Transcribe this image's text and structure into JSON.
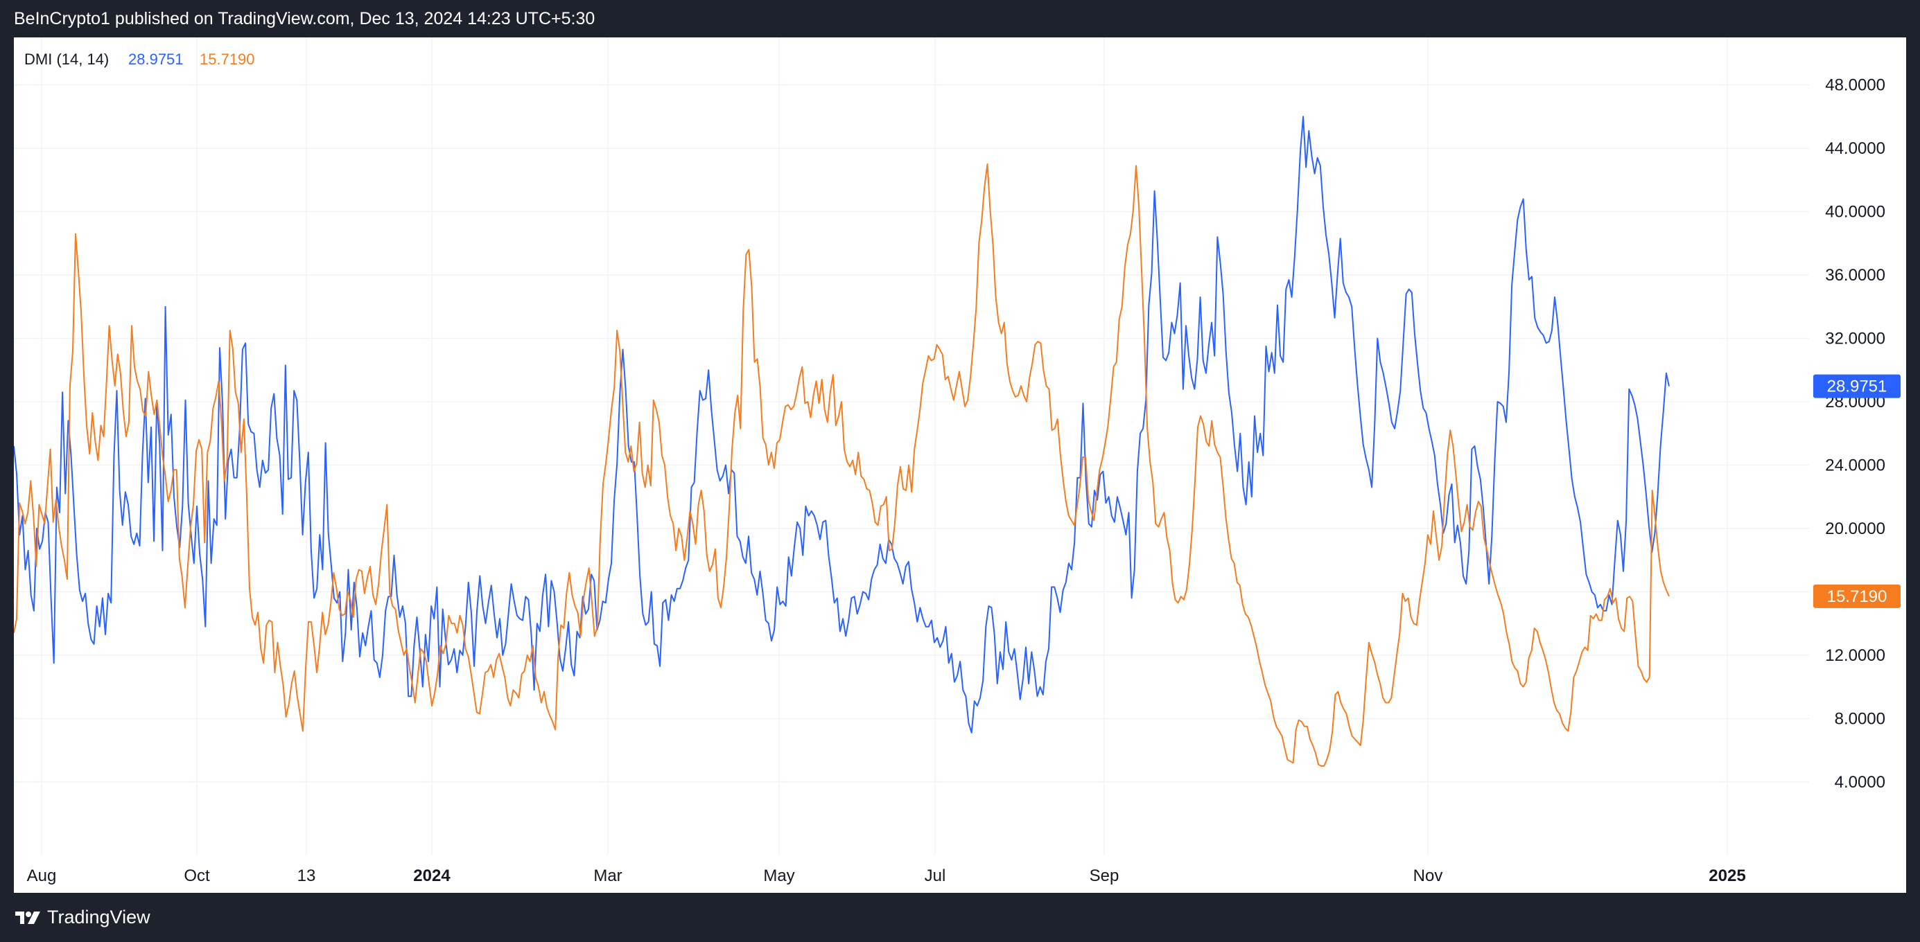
{
  "header": {
    "publisher": "BeInCrypto1 published on TradingView.com, Dec 13, 2024 14:23 UTC+5:30"
  },
  "footer": {
    "brand": "TradingView"
  },
  "indicator": {
    "name": "DMI (14, 14)",
    "plus_di": "28.9751",
    "minus_di": "15.7190"
  },
  "chart_data": {
    "type": "line",
    "title": "DMI (14, 14)",
    "y_ticks": [
      "4.0000",
      "8.0000",
      "12.0000",
      "16.0000",
      "20.0000",
      "24.0000",
      "28.0000",
      "32.0000",
      "36.0000",
      "40.0000",
      "44.0000",
      "48.0000"
    ],
    "y_range": [
      -0.6,
      51.0
    ],
    "x_ticks": [
      "Aug",
      "Oct",
      "13",
      "2024",
      "Mar",
      "May",
      "Jul",
      "Sep",
      "Nov",
      "2025"
    ],
    "grid": true,
    "series": [
      {
        "name": "",
        "color": "#2962ff",
        "last_value": "28.9751",
        "values": [
          25.2,
          23.4,
          19.6,
          20.8,
          17.4,
          18.6,
          15.8,
          14.8,
          20.0,
          18.7,
          19.2,
          21.0,
          20.4,
          15.6,
          11.5,
          22.6,
          21.0,
          28.6,
          22.2,
          26.8,
          24.6,
          21.4,
          18.3,
          16.1,
          15.4,
          15.9,
          14.0,
          13.0,
          12.7,
          15.1,
          13.8,
          15.6,
          13.3,
          15.9,
          15.3,
          24.5,
          28.7,
          22.4,
          20.2,
          22.3,
          21.5,
          19.5,
          19.0,
          19.7,
          18.9,
          24.7,
          28.2,
          22.9,
          26.4,
          19.2,
          28.0,
          25.3,
          18.6,
          34.0,
          25.9,
          27.2,
          22.0,
          20.1,
          18.8,
          21.4,
          28.1,
          21.6,
          19.6,
          17.8,
          21.4,
          18.4,
          16.8,
          13.8,
          23.0,
          17.8,
          20.6,
          20.2,
          31.4,
          27.8,
          20.6,
          24.3,
          25.0,
          23.2,
          23.2,
          26.3,
          31.3,
          31.7,
          26.6,
          26.1,
          26.0,
          23.7,
          22.6,
          24.3,
          23.5,
          23.7,
          27.6,
          28.5,
          25.7,
          24.6,
          20.9,
          30.3,
          23.1,
          23.2,
          28.7,
          28.1,
          24.3,
          19.6,
          22.9,
          24.8,
          18.6,
          15.6,
          16.2,
          19.6,
          17.4,
          25.4,
          19.7,
          17.7,
          15.6,
          15.3,
          16.0,
          11.6,
          13.4,
          17.4,
          13.6,
          16.6,
          15.0,
          11.9,
          13.4,
          12.6,
          13.8,
          14.8,
          11.7,
          11.5,
          10.6,
          12.0,
          14.8,
          15.7,
          15.7,
          18.3,
          15.8,
          14.4,
          15.1,
          14.0,
          9.4,
          9.4,
          12.6,
          14.4,
          12.3,
          10.0,
          13.3,
          11.6,
          15.1,
          14.3,
          16.3,
          10.0,
          14.9,
          13.0,
          11.4,
          11.7,
          12.4,
          10.9,
          12.3,
          12.0,
          13.8,
          16.6,
          14.7,
          11.3,
          14.8,
          17.0,
          15.1,
          14.0,
          15.3,
          16.4,
          14.6,
          13.1,
          14.3,
          12.0,
          12.7,
          14.6,
          16.5,
          15.4,
          14.5,
          14.3,
          14.2,
          15.7,
          15.5,
          13.3,
          9.8,
          14.0,
          13.5,
          15.8,
          17.1,
          13.8,
          16.7,
          16.0,
          14.1,
          11.8,
          11.0,
          12.4,
          14.1,
          11.4,
          10.7,
          13.5,
          13.1,
          15.7,
          14.6,
          14.9,
          17.1,
          16.7,
          13.6,
          14.2,
          15.4,
          15.3,
          16.8,
          17.8,
          21.8,
          24.1,
          28.6,
          31.3,
          28.8,
          25.2,
          24.2,
          24.2,
          20.8,
          17.0,
          14.6,
          13.9,
          14.1,
          16.0,
          12.7,
          12.6,
          11.3,
          15.3,
          15.5,
          14.2,
          15.8,
          15.4,
          16.2,
          16.2,
          16.7,
          17.5,
          18.0,
          22.6,
          22.9,
          26.1,
          28.7,
          28.1,
          28.2,
          30.0,
          27.5,
          25.6,
          23.7,
          23.0,
          23.3,
          24.0,
          22.2,
          23.7,
          23.5,
          19.5,
          19.2,
          18.2,
          17.8,
          19.5,
          17.2,
          16.8,
          15.8,
          17.3,
          15.9,
          14.2,
          14.0,
          12.9,
          13.6,
          16.3,
          15.2,
          15.4,
          15.1,
          18.2,
          17.0,
          18.8,
          20.4,
          20.0,
          18.3,
          21.4,
          20.8,
          21.1,
          20.8,
          20.2,
          19.3,
          20.4,
          20.5,
          18.3,
          16.9,
          15.3,
          15.6,
          13.5,
          14.3,
          13.2,
          14.2,
          15.6,
          15.7,
          14.6,
          15.2,
          16.0,
          15.9,
          15.5,
          16.8,
          17.4,
          17.7,
          19.0,
          18.1,
          17.8,
          19.3,
          19.0,
          18.1,
          17.8,
          17.2,
          16.5,
          17.6,
          17.9,
          16.2,
          15.3,
          14.1,
          15.0,
          14.3,
          13.8,
          13.8,
          14.2,
          12.8,
          13.1,
          12.5,
          12.9,
          13.8,
          11.5,
          12.1,
          10.3,
          10.7,
          11.6,
          9.8,
          9.4,
          7.7,
          7.1,
          9.1,
          8.8,
          9.3,
          10.4,
          13.8,
          15.1,
          15.0,
          13.3,
          10.2,
          12.2,
          11.1,
          14.1,
          12.2,
          11.7,
          12.4,
          10.9,
          9.2,
          10.5,
          12.5,
          10.2,
          12.2,
          11.0,
          9.4,
          10.0,
          9.5,
          11.6,
          12.4,
          16.3,
          16.3,
          15.6,
          14.7,
          16.1,
          16.6,
          17.8,
          17.4,
          19.1,
          23.2,
          23.2,
          27.9,
          23.1,
          20.3,
          20.1,
          22.4,
          21.8,
          23.4,
          23.6,
          21.6,
          22.0,
          20.8,
          20.4,
          22.0,
          21.3,
          20.5,
          19.6,
          21.0,
          15.6,
          17.4,
          23.6,
          26.0,
          26.3,
          28.1,
          34.1,
          36.1,
          41.3,
          38.2,
          34.4,
          30.8,
          30.6,
          31.1,
          33.0,
          32.3,
          33.5,
          35.5,
          28.8,
          32.8,
          30.9,
          29.5,
          28.8,
          30.7,
          34.6,
          30.6,
          29.8,
          31.6,
          33.0,
          30.9,
          38.4,
          36.8,
          34.8,
          31.2,
          28.6,
          27.3,
          25.2,
          23.6,
          26.0,
          22.6,
          21.5,
          24.2,
          22.0,
          27.1,
          24.8,
          26.0,
          24.6,
          31.5,
          29.9,
          31.1,
          29.8,
          34.1,
          30.9,
          30.5,
          35.1,
          35.7,
          34.6,
          37.1,
          40.1,
          43.8,
          46.0,
          42.8,
          45.1,
          43.5,
          42.4,
          43.4,
          42.9,
          40.3,
          38.5,
          37.3,
          35.5,
          33.3,
          36.0,
          38.3,
          35.5,
          34.9,
          34.6,
          34.0,
          31.4,
          29.1,
          27.1,
          25.3,
          24.4,
          23.7,
          22.6,
          26.5,
          32.0,
          30.5,
          29.8,
          28.9,
          27.9,
          26.7,
          26.3,
          27.4,
          28.7,
          31.7,
          34.8,
          35.1,
          34.9,
          32.3,
          30.4,
          28.7,
          27.6,
          27.3,
          26.3,
          25.5,
          24.6,
          22.8,
          21.5,
          19.7,
          20.3,
          22.1,
          22.8,
          19.1,
          20.2,
          19.1,
          17.0,
          16.5,
          18.6,
          25.0,
          25.2,
          23.9,
          23.1,
          21.3,
          19.0,
          16.5,
          19.5,
          24.2,
          28.0,
          27.9,
          27.7,
          26.7,
          29.8,
          35.4,
          37.5,
          39.5,
          40.3,
          40.8,
          37.6,
          35.7,
          35.9,
          33.3,
          32.7,
          32.4,
          32.2,
          31.7,
          31.8,
          32.5,
          34.6,
          33.0,
          30.9,
          28.9,
          26.8,
          25.0,
          23.1,
          22.0,
          21.3,
          20.4,
          18.7,
          17.1,
          16.6,
          16.0,
          15.8,
          15.0,
          15.2,
          14.8,
          14.8,
          15.8,
          15.2,
          17.9,
          20.5,
          19.6,
          17.3,
          20.5,
          28.8,
          28.4,
          27.8,
          26.9,
          25.4,
          23.9,
          22.1,
          20.1,
          18.5,
          19.7,
          22.1,
          25.2,
          27.4,
          29.8,
          28.9751
        ]
      },
      {
        "name": "",
        "color": "#f57c1f",
        "last_value": "15.7190",
        "values": [
          13.4,
          14.3,
          21.6,
          21.1,
          20.3,
          21.0,
          23.0,
          20.8,
          17.6,
          21.5,
          20.9,
          20.3,
          22.7,
          25.0,
          20.4,
          21.8,
          20.1,
          18.9,
          18.0,
          16.8,
          29.0,
          31.2,
          38.6,
          36.2,
          33.6,
          29.5,
          26.4,
          24.7,
          27.3,
          25.5,
          24.3,
          26.5,
          25.8,
          29.2,
          32.8,
          30.6,
          29.0,
          31.0,
          29.8,
          27.4,
          25.8,
          26.7,
          32.8,
          30.2,
          29.3,
          28.8,
          27.4,
          27.1,
          29.9,
          28.4,
          27.2,
          28.1,
          26.4,
          24.6,
          23.3,
          21.7,
          22.4,
          23.7,
          23.7,
          18.1,
          16.9,
          15.0,
          17.6,
          20.1,
          21.5,
          24.9,
          25.6,
          25.0,
          19.1,
          24.8,
          25.5,
          27.6,
          28.3,
          29.3,
          26.8,
          23.0,
          24.2,
          32.5,
          31.4,
          28.6,
          27.9,
          24.8,
          26.9,
          22.1,
          16.2,
          14.4,
          13.9,
          14.7,
          12.4,
          11.5,
          13.9,
          14.2,
          14.1,
          10.9,
          12.8,
          11.3,
          10.1,
          8.1,
          8.9,
          10.2,
          11.0,
          9.4,
          8.3,
          7.2,
          11.1,
          14.1,
          14.1,
          12.6,
          10.9,
          12.6,
          14.7,
          13.3,
          13.9,
          15.3,
          17.2,
          16.2,
          14.9,
          14.5,
          14.6,
          16.0,
          15.5,
          14.4,
          16.8,
          17.4,
          17.3,
          15.9,
          16.9,
          17.6,
          15.8,
          15.2,
          16.5,
          18.5,
          20.0,
          21.5,
          15.9,
          15.1,
          14.9,
          13.6,
          12.8,
          12.0,
          12.4,
          11.2,
          10.2,
          9.0,
          10.7,
          12.4,
          12.2,
          11.6,
          10.2,
          8.8,
          9.6,
          10.8,
          12.6,
          12.1,
          12.7,
          14.5,
          14.0,
          14.0,
          13.4,
          14.5,
          13.9,
          12.4,
          11.9,
          10.8,
          9.6,
          8.4,
          8.3,
          9.5,
          10.9,
          11.0,
          11.4,
          10.6,
          11.7,
          12.1,
          11.3,
          10.6,
          9.3,
          8.8,
          9.8,
          9.6,
          9.3,
          10.8,
          11.0,
          12.0,
          11.6,
          12.6,
          10.6,
          10.0,
          9.0,
          9.7,
          8.7,
          8.2,
          7.8,
          7.3,
          11.9,
          13.9,
          13.7,
          15.9,
          17.2,
          15.8,
          15.1,
          14.7,
          13.2,
          15.5,
          16.6,
          17.5,
          15.4,
          13.2,
          13.8,
          19.3,
          22.8,
          24.1,
          25.7,
          27.5,
          28.9,
          32.5,
          31.2,
          28.0,
          24.8,
          24.2,
          25.2,
          23.6,
          24.1,
          26.7,
          23.5,
          22.6,
          24.0,
          22.7,
          28.1,
          27.5,
          26.7,
          24.6,
          24.0,
          22.0,
          20.8,
          20.3,
          18.6,
          20.0,
          19.5,
          18.0,
          19.4,
          21.1,
          20.3,
          19.0,
          21.5,
          22.4,
          21.1,
          18.3,
          17.3,
          17.7,
          18.7,
          15.6,
          15.0,
          16.3,
          18.2,
          21.3,
          25.0,
          27.3,
          28.4,
          26.3,
          33.8,
          37.3,
          37.6,
          35.2,
          30.5,
          30.7,
          28.9,
          25.7,
          25.3,
          24.0,
          24.8,
          23.8,
          25.4,
          25.6,
          26.7,
          27.7,
          27.8,
          27.5,
          27.7,
          28.5,
          29.5,
          30.2,
          27.9,
          28.0,
          27.0,
          28.4,
          29.3,
          27.9,
          29.4,
          27.5,
          26.7,
          28.6,
          29.7,
          26.5,
          27.1,
          28.0,
          25.0,
          24.2,
          23.9,
          24.3,
          23.4,
          24.8,
          23.3,
          23.1,
          22.5,
          22.4,
          21.6,
          20.4,
          20.2,
          21.4,
          21.5,
          22.0,
          18.6,
          18.7,
          20.3,
          22.7,
          23.9,
          22.5,
          22.4,
          24.0,
          22.3,
          25.0,
          26.2,
          27.5,
          29.2,
          30.0,
          30.9,
          30.6,
          30.7,
          31.6,
          31.3,
          31.0,
          29.4,
          29.6,
          28.8,
          28.1,
          29.0,
          29.9,
          28.8,
          27.7,
          28.1,
          29.6,
          31.6,
          33.9,
          38.0,
          39.5,
          41.6,
          43.0,
          40.1,
          37.9,
          34.6,
          33.0,
          32.3,
          33.0,
          30.4,
          29.3,
          28.7,
          28.3,
          28.4,
          29.0,
          28.4,
          28.0,
          29.5,
          30.4,
          31.6,
          31.8,
          31.7,
          30.0,
          29.0,
          28.8,
          26.2,
          26.3,
          26.9,
          24.7,
          23.1,
          21.7,
          20.8,
          20.5,
          20.2,
          21.4,
          22.7,
          24.5,
          24.5,
          21.8,
          21.1,
          20.5,
          22.2,
          23.7,
          24.4,
          25.4,
          26.5,
          28.3,
          30.2,
          30.5,
          33.2,
          34.0,
          36.5,
          37.9,
          38.6,
          40.1,
          42.9,
          40.4,
          36.2,
          31.9,
          26.3,
          24.2,
          22.9,
          20.3,
          20.1,
          20.6,
          21.0,
          19.4,
          18.6,
          16.5,
          15.5,
          15.3,
          15.7,
          15.5,
          16.1,
          17.7,
          19.9,
          23.0,
          26.4,
          27.1,
          26.6,
          25.5,
          25.2,
          26.8,
          25.3,
          24.8,
          24.5,
          22.7,
          20.7,
          19.3,
          18.1,
          17.8,
          16.6,
          16.4,
          15.2,
          14.6,
          14.4,
          13.9,
          13.2,
          12.5,
          11.6,
          10.9,
          10.1,
          9.6,
          9.1,
          8.1,
          7.5,
          7.2,
          6.9,
          6.1,
          5.4,
          5.3,
          5.2,
          7.3,
          7.9,
          7.8,
          7.5,
          7.5,
          6.7,
          6.3,
          5.8,
          5.1,
          5.0,
          5.0,
          5.4,
          6.0,
          7.2,
          9.5,
          9.7,
          9.0,
          8.6,
          8.3,
          7.5,
          6.9,
          6.7,
          6.5,
          6.3,
          7.9,
          10.5,
          12.8,
          12.1,
          11.6,
          10.8,
          10.2,
          9.3,
          9.0,
          9.0,
          9.3,
          10.7,
          12.1,
          13.4,
          15.9,
          15.4,
          15.6,
          14.4,
          14.0,
          13.9,
          15.4,
          16.6,
          17.8,
          19.6,
          19.0,
          21.1,
          19.5,
          18.0,
          18.9,
          22.0,
          24.7,
          26.2,
          25.2,
          23.4,
          21.5,
          19.8,
          20.4,
          21.5,
          20.1,
          19.9,
          21.0,
          21.7,
          21.4,
          19.4,
          18.7,
          17.8,
          17.1,
          16.4,
          15.8,
          15.3,
          14.6,
          13.5,
          12.7,
          11.6,
          11.2,
          11.0,
          10.2,
          10.0,
          10.3,
          11.8,
          12.3,
          13.7,
          13.5,
          12.8,
          12.3,
          11.7,
          10.9,
          9.9,
          9.0,
          8.5,
          8.3,
          7.7,
          7.4,
          7.2,
          8.4,
          10.6,
          11.0,
          11.6,
          12.2,
          12.5,
          12.3,
          14.5,
          14.3,
          14.6,
          14.2,
          14.2,
          15.5,
          15.7,
          16.2,
          15.3,
          15.6,
          14.3,
          13.7,
          13.5,
          15.6,
          15.7,
          15.4,
          13.3,
          11.3,
          11.0,
          10.5,
          10.3,
          10.6,
          22.4,
          20.7,
          18.8,
          17.3,
          16.6,
          16.1,
          15.719
        ]
      }
    ]
  }
}
